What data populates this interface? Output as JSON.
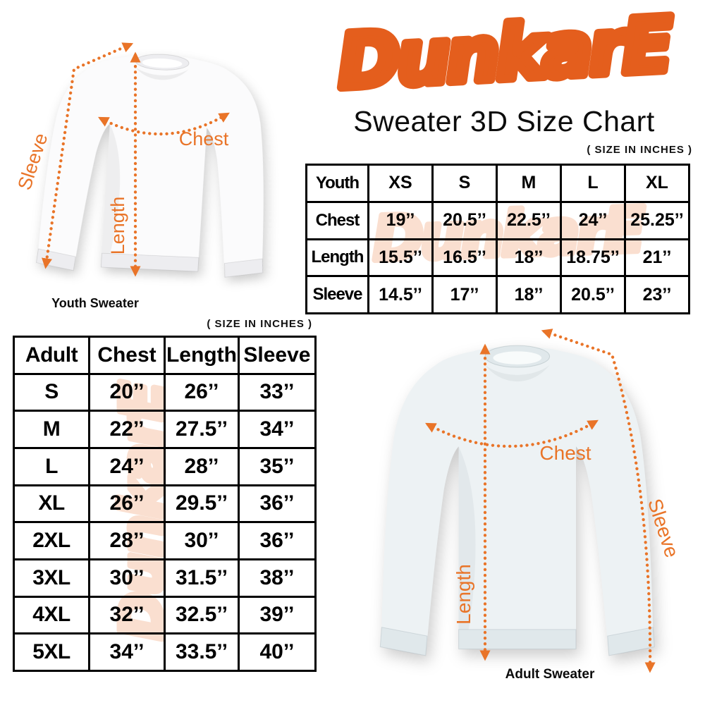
{
  "brand": {
    "name": "DunkarE",
    "title": "Sweater 3D Size Chart"
  },
  "size_note": "( SIZE IN INCHES )",
  "youth_diagram": {
    "caption": "Youth Sweater",
    "labels": {
      "chest": "Chest",
      "length": "Length",
      "sleeve": "Sleeve"
    }
  },
  "adult_diagram": {
    "caption": "Adult Sweater",
    "labels": {
      "chest": "Chest",
      "length": "Length",
      "sleeve": "Sleeve"
    }
  },
  "youth_table": {
    "corner": "Youth",
    "columns": [
      "XS",
      "S",
      "M",
      "L",
      "XL"
    ],
    "rows": [
      {
        "label": "Chest",
        "values": [
          "19’’",
          "20.5’’",
          "22.5’’",
          "24’’",
          "25.25’’"
        ]
      },
      {
        "label": "Length",
        "values": [
          "15.5’’",
          "16.5’’",
          "18’’",
          "18.75’’",
          "21’’"
        ]
      },
      {
        "label": "Sleeve",
        "values": [
          "14.5’’",
          "17’’",
          "18’’",
          "20.5’’",
          "23’’"
        ]
      }
    ]
  },
  "adult_table": {
    "headers": [
      "Adult",
      "Chest",
      "Length",
      "Sleeve"
    ],
    "rows": [
      [
        "S",
        "20’’",
        "26’’",
        "33’’"
      ],
      [
        "M",
        "22’’",
        "27.5’’",
        "34’’"
      ],
      [
        "L",
        "24’’",
        "28’’",
        "35’’"
      ],
      [
        "XL",
        "26’’",
        "29.5’’",
        "36’’"
      ],
      [
        "2XL",
        "28’’",
        "30’’",
        "36’’"
      ],
      [
        "3XL",
        "30’’",
        "31.5’’",
        "38’’"
      ],
      [
        "4XL",
        "32’’",
        "32.5’’",
        "39’’"
      ],
      [
        "5XL",
        "34’’",
        "33.5’’",
        "40’’"
      ]
    ]
  },
  "colors": {
    "brand_orange": "#e45e1d",
    "arrow_orange": "#e97428",
    "watermark_peach": "#f8cbb1",
    "text_black": "#000000"
  },
  "chart_data": [
    {
      "type": "table",
      "columns": [
        "Youth",
        "XS",
        "S",
        "M",
        "L",
        "XL"
      ],
      "rows": [
        [
          "Chest",
          "19",
          "20.5",
          "22.5",
          "24",
          "25.25"
        ],
        [
          "Length",
          "15.5",
          "16.5",
          "18",
          "18.75",
          "21"
        ],
        [
          "Sleeve",
          "14.5",
          "17",
          "18",
          "20.5",
          "23"
        ]
      ],
      "units": "inches"
    },
    {
      "type": "table",
      "columns": [
        "Adult",
        "Chest",
        "Length",
        "Sleeve"
      ],
      "rows": [
        [
          "S",
          "20",
          "26",
          "33"
        ],
        [
          "M",
          "22",
          "27.5",
          "34"
        ],
        [
          "L",
          "24",
          "28",
          "35"
        ],
        [
          "XL",
          "26",
          "29.5",
          "36"
        ],
        [
          "2XL",
          "28",
          "30",
          "36"
        ],
        [
          "3XL",
          "30",
          "31.5",
          "38"
        ],
        [
          "4XL",
          "32",
          "32.5",
          "39"
        ],
        [
          "5XL",
          "34",
          "33.5",
          "40"
        ]
      ],
      "units": "inches"
    }
  ]
}
